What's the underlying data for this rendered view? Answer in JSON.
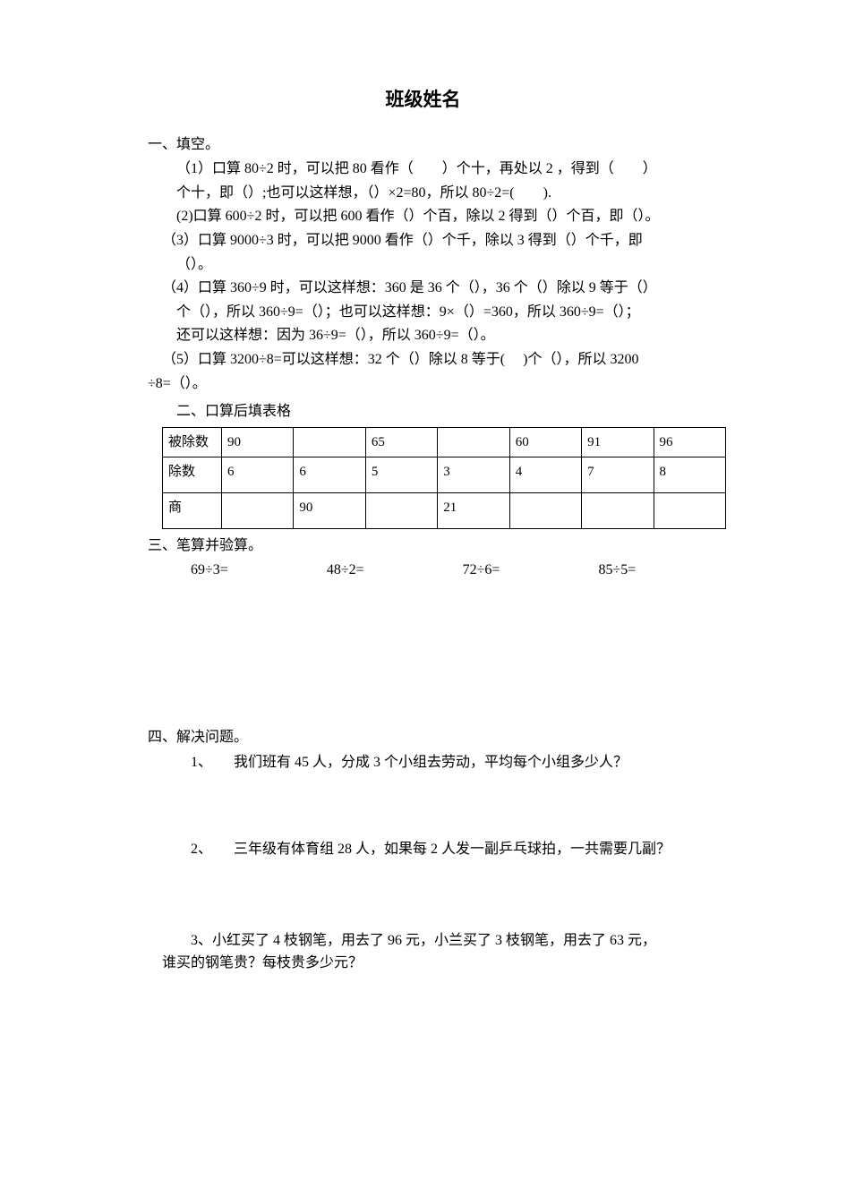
{
  "title": "班级姓名",
  "section1": {
    "heading": "一、填空。",
    "q1_l1": "（1）口算 80÷2 时，可以把 80 看作（　　）个十，再处以 2 ，得到（　　）",
    "q1_l2": "个十，即（）;也可以这样想，（）×2=80，所以 80÷2=(　　).",
    "q2": "(2)口算 600÷2 时，可以把 600 看作（）个百，除以 2 得到（）个百，即（）。",
    "q3_l1": "（3）口算 9000÷3 时，可以把 9000 看作（）个千，除以 3 得到（）个千，即",
    "q3_l2": "（）。",
    "q4_l1": "（4）口算 360÷9 时，可以这样想：360 是 36 个（），36 个（）除以 9 等于（）",
    "q4_l2": "个（），所以 360÷9=（）；也可以这样想：9×（）=360，所以 360÷9=（）；",
    "q4_l3": "还可以这样想：因为 36÷9=（），所以 360÷9=（）。",
    "q5_l1": "（5）口算 3200÷8=可以这样想：32 个（）除以 8 等于(　 )个（），所以 3200",
    "q5_l2": "÷8=（）。"
  },
  "section2": {
    "heading": "二、口算后填表格",
    "rows": [
      {
        "label": "被除数",
        "cells": [
          "90",
          "",
          "65",
          "",
          "60",
          "91",
          "96"
        ]
      },
      {
        "label": "除数",
        "cells": [
          "6",
          "6",
          "5",
          "3",
          "4",
          "7",
          "8"
        ]
      },
      {
        "label": "商",
        "cells": [
          "",
          "90",
          "",
          "21",
          "",
          "",
          ""
        ]
      }
    ]
  },
  "section3": {
    "heading": "三、笔算并验算。",
    "items": [
      "69÷3=",
      "48÷2=",
      "72÷6=",
      "85÷5="
    ]
  },
  "section4": {
    "heading": "四、解决问题。",
    "q1_num": "1、",
    "q1_text": "我们班有 45 人，分成 3 个小组去劳动，平均每个小组多少人？",
    "q2_num": "2、",
    "q2_text": "三年级有体育组 28 人，如果每 2 人发一副乒乓球拍，一共需要几副？",
    "q3_l1": "3、小红买了 4 枝钢笔，用去了 96 元，小兰买了 3 枝钢笔，用去了 63 元，",
    "q3_l2": "谁买的钢笔贵？每枝贵多少元？"
  }
}
